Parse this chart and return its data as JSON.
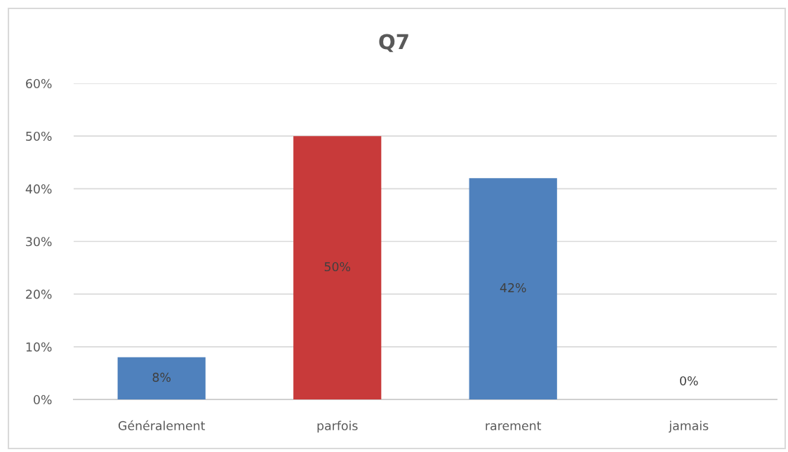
{
  "chart_data": {
    "type": "bar",
    "title": "Q7",
    "categories": [
      "Généralement",
      "parfois",
      "rarement",
      "jamais"
    ],
    "values": [
      8,
      50,
      42,
      0
    ],
    "colors": [
      "#4f81bd",
      "#c83a3a",
      "#4f81bd",
      "#4f81bd"
    ],
    "value_labels": [
      "8%",
      "50%",
      "42%",
      "0%"
    ],
    "ylim": [
      0,
      60
    ],
    "yticks": [
      {
        "value": 0,
        "label": "0%"
      },
      {
        "value": 10,
        "label": "10%"
      },
      {
        "value": 20,
        "label": "20%"
      },
      {
        "value": 30,
        "label": "30%"
      },
      {
        "value": 40,
        "label": "40%"
      },
      {
        "value": 50,
        "label": "50%"
      },
      {
        "value": 60,
        "label": "60%"
      }
    ],
    "grid": "y"
  }
}
